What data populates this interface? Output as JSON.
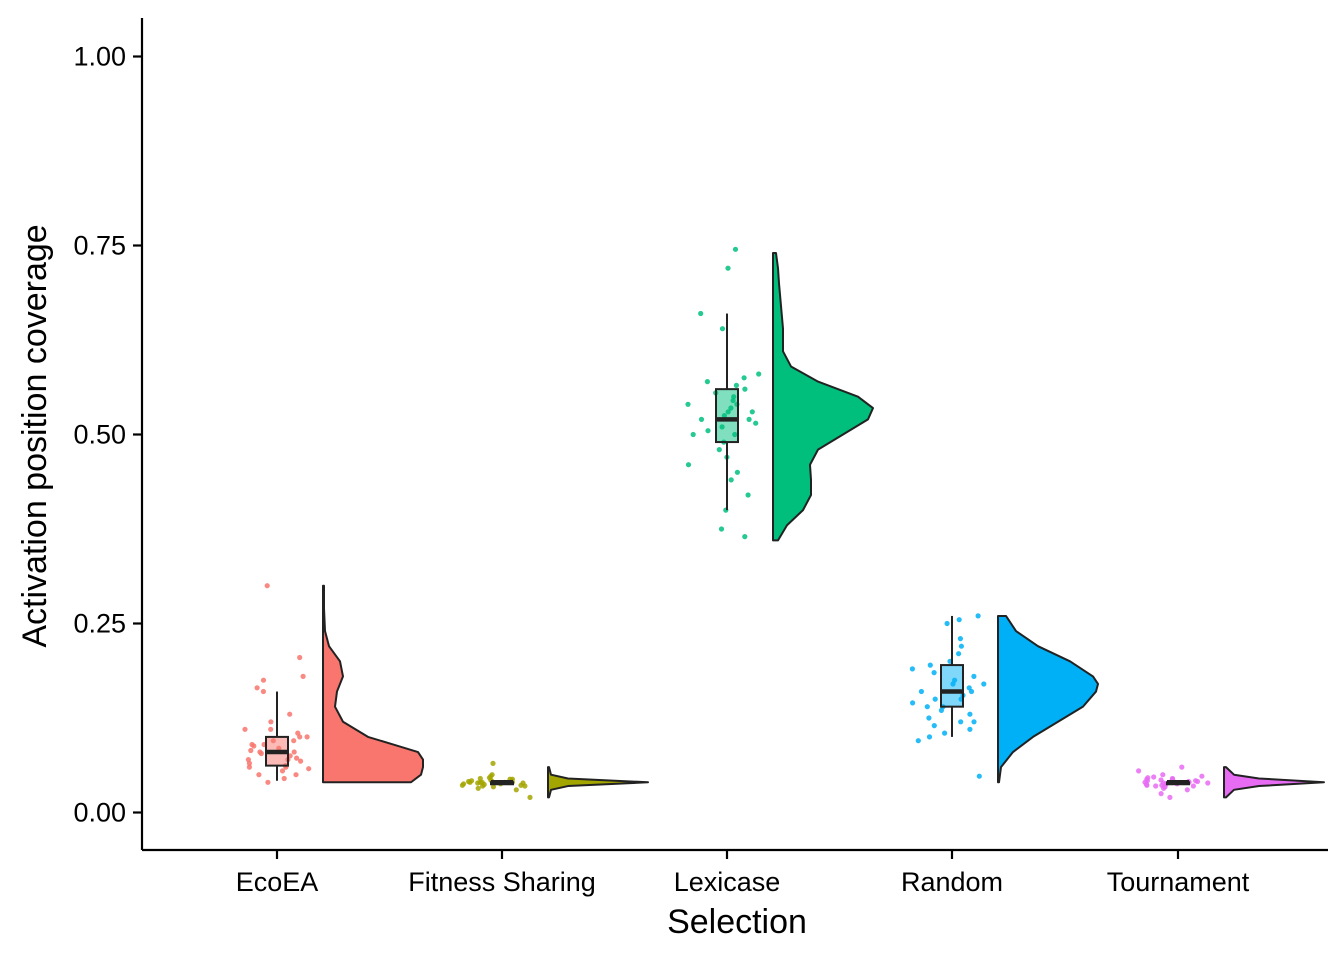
{
  "chart_data": {
    "type": "raincloud",
    "xlabel": "Selection",
    "ylabel": "Activation position coverage",
    "ylim": [
      -0.05,
      1.05
    ],
    "yticks": [
      0.0,
      0.25,
      0.5,
      0.75,
      1.0
    ],
    "ytick_labels": [
      "0.00",
      "0.25",
      "0.50",
      "0.75",
      "1.00"
    ],
    "grid": false,
    "legend": "none",
    "categories": [
      "EcoEA",
      "Fitness Sharing",
      "Lexicase",
      "Random",
      "Tournament"
    ],
    "series": [
      {
        "category": "EcoEA",
        "color": "#F8766D",
        "box": {
          "min": 0.042,
          "q1": 0.062,
          "median": 0.08,
          "q3": 0.1,
          "max": 0.16
        },
        "density_range": [
          0.04,
          0.3
        ],
        "density": [
          [
            0.04,
            0.88
          ],
          [
            0.05,
            0.98
          ],
          [
            0.06,
            1.0
          ],
          [
            0.07,
            1.0
          ],
          [
            0.08,
            0.95
          ],
          [
            0.09,
            0.7
          ],
          [
            0.1,
            0.45
          ],
          [
            0.12,
            0.2
          ],
          [
            0.14,
            0.12
          ],
          [
            0.16,
            0.14
          ],
          [
            0.18,
            0.2
          ],
          [
            0.2,
            0.17
          ],
          [
            0.22,
            0.06
          ],
          [
            0.24,
            0.02
          ],
          [
            0.27,
            0.01
          ],
          [
            0.3,
            0.01
          ]
        ],
        "points": [
          0.045,
          0.05,
          0.055,
          0.058,
          0.06,
          0.062,
          0.065,
          0.068,
          0.07,
          0.072,
          0.075,
          0.078,
          0.08,
          0.082,
          0.085,
          0.088,
          0.09,
          0.095,
          0.1,
          0.105,
          0.11,
          0.12,
          0.13,
          0.16,
          0.165,
          0.175,
          0.18,
          0.205,
          0.3,
          0.04,
          0.05,
          0.06,
          0.07,
          0.08,
          0.09,
          0.095,
          0.1,
          0.11
        ]
      },
      {
        "category": "Fitness Sharing",
        "color": "#A3A500",
        "box": {
          "min": 0.04,
          "q1": 0.04,
          "median": 0.04,
          "q3": 0.04,
          "max": 0.04
        },
        "density_range": [
          0.02,
          0.06
        ],
        "density": [
          [
            0.02,
            0.01
          ],
          [
            0.03,
            0.03
          ],
          [
            0.035,
            0.2
          ],
          [
            0.04,
            1.0
          ],
          [
            0.045,
            0.2
          ],
          [
            0.05,
            0.03
          ],
          [
            0.06,
            0.01
          ]
        ],
        "points": [
          0.03,
          0.032,
          0.034,
          0.035,
          0.036,
          0.037,
          0.038,
          0.039,
          0.04,
          0.04,
          0.04,
          0.041,
          0.042,
          0.043,
          0.044,
          0.045,
          0.046,
          0.048,
          0.05,
          0.02,
          0.065,
          0.038,
          0.04,
          0.042,
          0.044,
          0.036,
          0.035,
          0.04,
          0.041,
          0.039
        ]
      },
      {
        "category": "Lexicase",
        "color": "#00BF7D",
        "box": {
          "min": 0.4,
          "q1": 0.49,
          "median": 0.52,
          "q3": 0.56,
          "max": 0.66
        },
        "density_range": [
          0.36,
          0.74
        ],
        "density": [
          [
            0.36,
            0.05
          ],
          [
            0.38,
            0.14
          ],
          [
            0.4,
            0.3
          ],
          [
            0.42,
            0.38
          ],
          [
            0.44,
            0.38
          ],
          [
            0.46,
            0.37
          ],
          [
            0.48,
            0.45
          ],
          [
            0.5,
            0.7
          ],
          [
            0.52,
            0.95
          ],
          [
            0.535,
            1.0
          ],
          [
            0.55,
            0.85
          ],
          [
            0.57,
            0.45
          ],
          [
            0.59,
            0.18
          ],
          [
            0.61,
            0.1
          ],
          [
            0.64,
            0.1
          ],
          [
            0.67,
            0.08
          ],
          [
            0.7,
            0.06
          ],
          [
            0.72,
            0.05
          ],
          [
            0.74,
            0.03
          ]
        ],
        "points": [
          0.365,
          0.375,
          0.4,
          0.42,
          0.44,
          0.45,
          0.46,
          0.47,
          0.48,
          0.49,
          0.5,
          0.505,
          0.51,
          0.515,
          0.52,
          0.525,
          0.53,
          0.535,
          0.54,
          0.545,
          0.55,
          0.555,
          0.56,
          0.565,
          0.57,
          0.575,
          0.58,
          0.64,
          0.66,
          0.72,
          0.745,
          0.52,
          0.53,
          0.54,
          0.5
        ]
      },
      {
        "category": "Random",
        "color": "#00B0F6",
        "box": {
          "min": 0.1,
          "q1": 0.14,
          "median": 0.16,
          "q3": 0.195,
          "max": 0.26
        },
        "density_range": [
          0.04,
          0.26
        ],
        "density": [
          [
            0.04,
            0.01
          ],
          [
            0.06,
            0.03
          ],
          [
            0.08,
            0.15
          ],
          [
            0.1,
            0.35
          ],
          [
            0.12,
            0.6
          ],
          [
            0.14,
            0.85
          ],
          [
            0.16,
            0.98
          ],
          [
            0.17,
            1.0
          ],
          [
            0.18,
            0.95
          ],
          [
            0.2,
            0.72
          ],
          [
            0.22,
            0.4
          ],
          [
            0.24,
            0.18
          ],
          [
            0.26,
            0.08
          ]
        ],
        "points": [
          0.048,
          0.095,
          0.1,
          0.105,
          0.11,
          0.115,
          0.12,
          0.125,
          0.13,
          0.135,
          0.14,
          0.145,
          0.15,
          0.155,
          0.16,
          0.165,
          0.17,
          0.175,
          0.18,
          0.185,
          0.19,
          0.195,
          0.2,
          0.21,
          0.22,
          0.23,
          0.25,
          0.255,
          0.26,
          0.15,
          0.16,
          0.17,
          0.14,
          0.12
        ]
      },
      {
        "category": "Tournament",
        "color": "#E76BF3",
        "box": {
          "min": 0.04,
          "q1": 0.04,
          "median": 0.04,
          "q3": 0.04,
          "max": 0.04
        },
        "density_range": [
          0.02,
          0.06
        ],
        "density": [
          [
            0.02,
            0.02
          ],
          [
            0.03,
            0.1
          ],
          [
            0.035,
            0.35
          ],
          [
            0.04,
            1.0
          ],
          [
            0.045,
            0.35
          ],
          [
            0.05,
            0.1
          ],
          [
            0.06,
            0.02
          ]
        ],
        "points": [
          0.02,
          0.025,
          0.03,
          0.032,
          0.034,
          0.035,
          0.036,
          0.037,
          0.038,
          0.039,
          0.04,
          0.04,
          0.041,
          0.042,
          0.043,
          0.044,
          0.045,
          0.046,
          0.048,
          0.05,
          0.055,
          0.06,
          0.038,
          0.04,
          0.042,
          0.044,
          0.036,
          0.035,
          0.04,
          0.041,
          0.039,
          0.047
        ]
      }
    ]
  }
}
